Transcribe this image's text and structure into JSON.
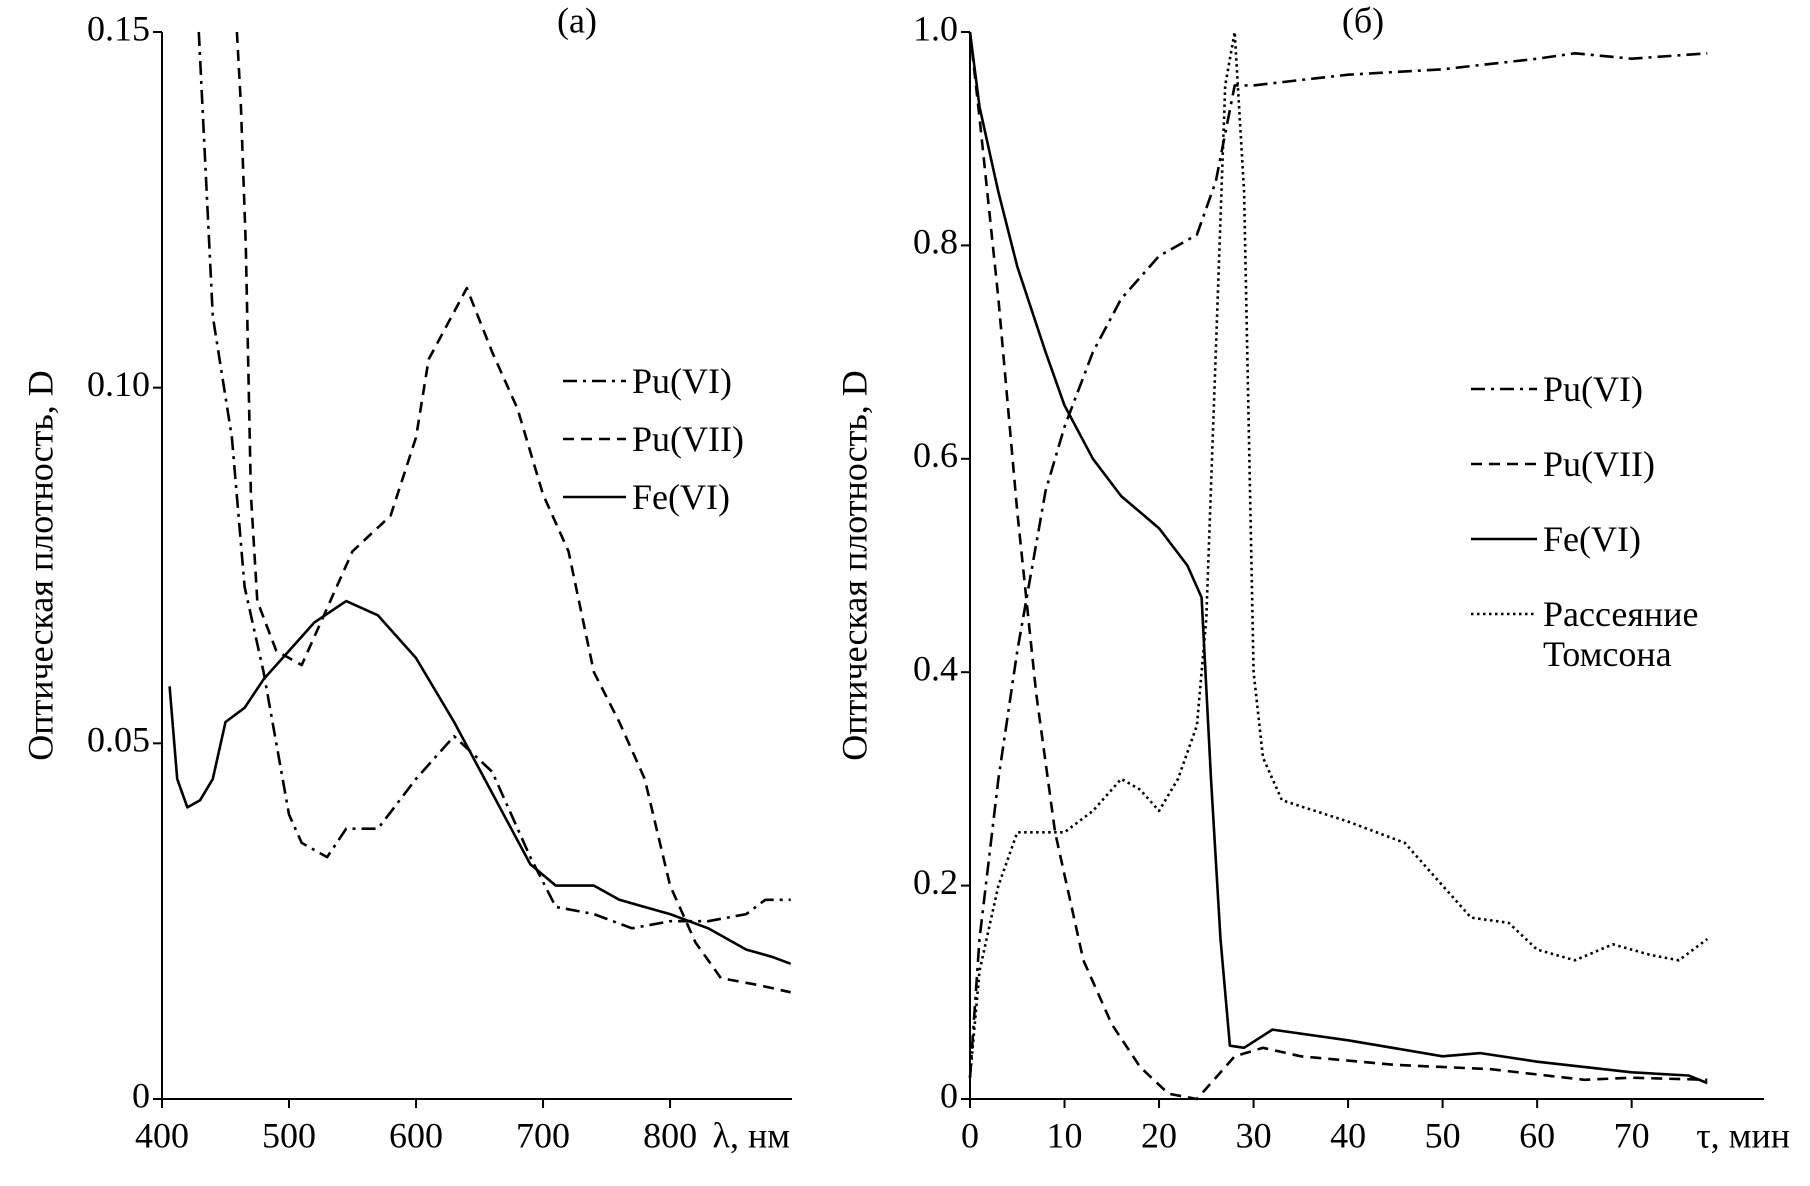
{
  "chart_data": [
    {
      "type": "line",
      "title": "(а)",
      "xlabel": "λ, нм",
      "ylabel": "Оптическая плотность, D",
      "xlim": [
        400,
        896
      ],
      "ylim": [
        0,
        0.15
      ],
      "xticks": [
        400,
        500,
        600,
        700,
        800
      ],
      "yticks": [
        0,
        0.05,
        {
          "value": 0.1,
          "label": "0.10"
        },
        0.15
      ],
      "series": [
        {
          "name": "Pu(VI)",
          "style": "dash-dot",
          "color": "#000000",
          "x": [
            429,
            440,
            455,
            465,
            480,
            490,
            500,
            510,
            530,
            545,
            570,
            600,
            630,
            660,
            690,
            710,
            740,
            770,
            800,
            830,
            860,
            875,
            895
          ],
          "values": [
            0.15,
            0.11,
            0.093,
            0.072,
            0.06,
            0.05,
            0.04,
            0.036,
            0.034,
            0.038,
            0.038,
            0.045,
            0.051,
            0.046,
            0.034,
            0.027,
            0.026,
            0.024,
            0.025,
            0.025,
            0.026,
            0.028,
            0.028
          ]
        },
        {
          "name": "Pu(VII)",
          "style": "dashed",
          "color": "#000000",
          "x": [
            459,
            462,
            466,
            470,
            475,
            490,
            510,
            530,
            550,
            580,
            600,
            610,
            625,
            640,
            660,
            680,
            700,
            720,
            740,
            760,
            780,
            800,
            820,
            840,
            870,
            895
          ],
          "values": [
            0.15,
            0.14,
            0.12,
            0.085,
            0.07,
            0.063,
            0.061,
            0.069,
            0.077,
            0.082,
            0.093,
            0.104,
            0.109,
            0.114,
            0.105,
            0.097,
            0.085,
            0.077,
            0.06,
            0.053,
            0.045,
            0.03,
            0.022,
            0.017,
            0.016,
            0.015
          ]
        },
        {
          "name": "Fe(VI)",
          "style": "solid",
          "color": "#000000",
          "x": [
            406,
            412,
            420,
            430,
            440,
            450,
            465,
            480,
            500,
            520,
            545,
            570,
            600,
            630,
            660,
            690,
            710,
            740,
            760,
            800,
            830,
            860,
            880,
            895
          ],
          "values": [
            0.058,
            0.045,
            0.041,
            0.042,
            0.045,
            0.053,
            0.055,
            0.059,
            0.063,
            0.067,
            0.07,
            0.068,
            0.062,
            0.053,
            0.043,
            0.033,
            0.03,
            0.03,
            0.028,
            0.026,
            0.024,
            0.021,
            0.02,
            0.019
          ]
        }
      ]
    },
    {
      "type": "line",
      "title": "(б)",
      "xlabel": "τ, мин",
      "ylabel": "Оптическая плотность, D",
      "xlim": [
        0,
        84
      ],
      "ylim": [
        0,
        1
      ],
      "xticks": [
        0,
        10,
        20,
        30,
        40,
        50,
        60,
        70
      ],
      "yticks": [
        0,
        0.2,
        0.4,
        0.6,
        0.8,
        {
          "value": 1,
          "label": "1.0"
        }
      ],
      "series": [
        {
          "name": "Pu(VI)",
          "style": "dash-dot",
          "color": "#000000",
          "x": [
            0,
            1,
            3,
            5,
            8,
            10,
            13,
            16,
            20,
            24,
            26,
            28,
            30,
            35,
            40,
            50,
            60,
            64,
            70,
            78
          ],
          "values": [
            0.02,
            0.15,
            0.3,
            0.42,
            0.57,
            0.63,
            0.7,
            0.75,
            0.79,
            0.81,
            0.86,
            0.95,
            0.95,
            0.955,
            0.96,
            0.965,
            0.975,
            0.98,
            0.975,
            0.98
          ]
        },
        {
          "name": "Pu(VII)",
          "style": "dashed",
          "color": "#000000",
          "x": [
            0,
            1,
            3,
            5,
            7,
            9,
            12,
            15,
            18,
            21,
            24,
            26,
            28,
            31,
            35,
            45,
            55,
            65,
            70,
            78
          ],
          "values": [
            1.0,
            0.92,
            0.75,
            0.55,
            0.38,
            0.25,
            0.13,
            0.07,
            0.03,
            0.005,
            0,
            0.02,
            0.04,
            0.048,
            0.04,
            0.032,
            0.028,
            0.018,
            0.02,
            0.018
          ]
        },
        {
          "name": "Fe(VI)",
          "style": "solid",
          "color": "#000000",
          "x": [
            0,
            1,
            3,
            5,
            8,
            10,
            13,
            16,
            20,
            23,
            24.5,
            25.5,
            26.5,
            27.5,
            29,
            32,
            40,
            50,
            54,
            60,
            70,
            76,
            78
          ],
          "values": [
            1.0,
            0.93,
            0.85,
            0.78,
            0.7,
            0.65,
            0.6,
            0.565,
            0.535,
            0.5,
            0.47,
            0.3,
            0.15,
            0.05,
            0.048,
            0.065,
            0.055,
            0.04,
            0.043,
            0.035,
            0.025,
            0.022,
            0.015
          ]
        },
        {
          "name": "Рассеяние Томсона",
          "style": "dotted",
          "color": "#000000",
          "x": [
            0,
            1,
            3,
            5,
            8,
            10,
            13,
            16,
            18,
            20,
            22,
            24,
            25,
            26,
            27,
            28,
            29,
            30,
            31,
            33,
            40,
            46,
            50,
            53,
            57,
            60,
            64,
            68,
            72,
            75,
            78
          ],
          "values": [
            0.02,
            0.12,
            0.2,
            0.25,
            0.25,
            0.25,
            0.27,
            0.3,
            0.29,
            0.27,
            0.3,
            0.35,
            0.45,
            0.7,
            0.95,
            1.0,
            0.85,
            0.4,
            0.32,
            0.28,
            0.26,
            0.24,
            0.2,
            0.17,
            0.165,
            0.14,
            0.13,
            0.145,
            0.135,
            0.13,
            0.15
          ]
        }
      ]
    }
  ]
}
